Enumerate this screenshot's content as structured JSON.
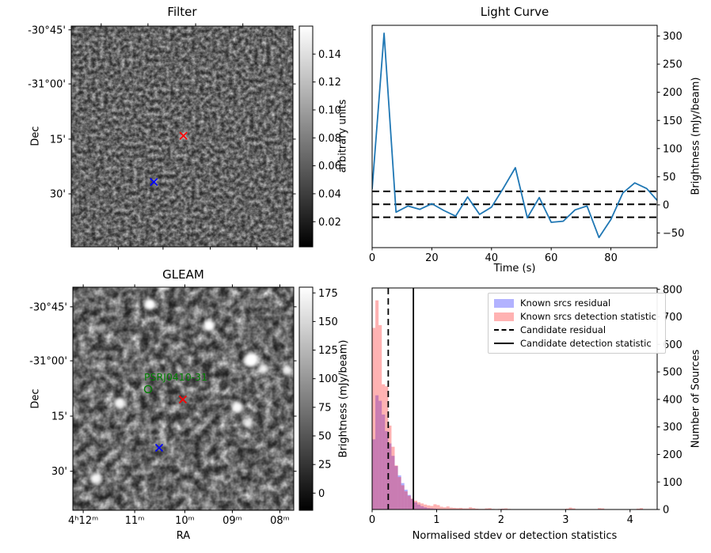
{
  "chart_data": [
    {
      "id": "filter_map",
      "type": "heatmap",
      "title": "Filter",
      "ylabel": "Dec",
      "colorbar": {
        "label": "arbitrary units",
        "vmin": 0.002,
        "vmax": 0.16,
        "ticks": [
          {
            "v": 0.02,
            "label": "0.02"
          },
          {
            "v": 0.04,
            "label": "0.04"
          },
          {
            "v": 0.06,
            "label": "0.06"
          },
          {
            "v": 0.08,
            "label": "0.08"
          },
          {
            "v": 0.1,
            "label": "0.10"
          },
          {
            "v": 0.12,
            "label": "0.12"
          },
          {
            "v": 0.14,
            "label": "0.14"
          }
        ]
      },
      "yticks": [
        {
          "label": "-30°45'",
          "f": 0.017
        },
        {
          "label": "-31°00'",
          "f": 0.262
        },
        {
          "label": "15'",
          "f": 0.512
        },
        {
          "label": "30'",
          "f": 0.76
        }
      ],
      "xticks_top": [
        {
          "f": 0.135
        },
        {
          "f": 0.346
        },
        {
          "f": 0.561
        },
        {
          "f": 0.774
        }
      ],
      "xticks_bottom": [
        {
          "f": 0.212
        },
        {
          "f": 0.414
        },
        {
          "f": 0.627
        },
        {
          "f": 0.837
        }
      ],
      "markers": [
        {
          "name": "red-x-marker",
          "color": "#ff0000",
          "fx": 0.506,
          "fy": 0.497
        },
        {
          "name": "blue-x-marker",
          "color": "#0000ff",
          "fx": 0.3725,
          "fy": 0.706
        }
      ]
    },
    {
      "id": "light_curve",
      "type": "line",
      "title": "Light Curve",
      "xlabel": "Time (s)",
      "ylabel": "Brightness (mJy/beam)",
      "line_color": "#1f77b4",
      "xlim": [
        0,
        95.5
      ],
      "ylim": [
        -76,
        319
      ],
      "xticks": [
        0,
        20,
        40,
        60,
        80
      ],
      "yticks": [
        -50,
        0,
        50,
        100,
        150,
        200,
        250,
        300
      ],
      "hlines": [
        24,
        1,
        -22
      ],
      "x": [
        0,
        4,
        8,
        12,
        16,
        20,
        24,
        28,
        32,
        36,
        40,
        44,
        48,
        52,
        56,
        60,
        64,
        68,
        72,
        76,
        80,
        84,
        88,
        92,
        96
      ],
      "y": [
        28,
        305,
        -13,
        -2,
        -8,
        2,
        -10,
        -20,
        14,
        -17,
        -4,
        30,
        66,
        -23,
        13,
        -31,
        -29,
        -9,
        -2,
        -58,
        -26,
        21,
        39,
        29,
        5
      ]
    },
    {
      "id": "gleam_map",
      "type": "heatmap",
      "title": "GLEAM",
      "xlabel": "RA",
      "ylabel": "Dec",
      "colorbar": {
        "label": "Brightness (mJy/beam)",
        "vmin": -15,
        "vmax": 180,
        "ticks": [
          {
            "v": 0,
            "label": "0"
          },
          {
            "v": 25,
            "label": "25"
          },
          {
            "v": 50,
            "label": "50"
          },
          {
            "v": 75,
            "label": "75"
          },
          {
            "v": 100,
            "label": "100"
          },
          {
            "v": 125,
            "label": "125"
          },
          {
            "v": 150,
            "label": "150"
          },
          {
            "v": 175,
            "label": "175"
          }
        ]
      },
      "yticks": [
        {
          "label": "-30°45'",
          "f": 0.088
        },
        {
          "label": "-31°00'",
          "f": 0.33
        },
        {
          "label": "15'",
          "f": 0.578
        },
        {
          "label": "30'",
          "f": 0.825
        }
      ],
      "xticks_bottom": [
        {
          "label": "4ʰ12ᵐ",
          "f": 0.047
        },
        {
          "label": "11ᵐ",
          "f": 0.28
        },
        {
          "label": "10ᵐ",
          "f": 0.507
        },
        {
          "label": "09ᵐ",
          "f": 0.722
        },
        {
          "label": "08ᵐ",
          "f": 0.937
        }
      ],
      "xticks_top": [
        {
          "f": 0.047
        },
        {
          "f": 0.28
        },
        {
          "f": 0.507
        },
        {
          "f": 0.722
        },
        {
          "f": 0.937
        }
      ],
      "annotation": {
        "text": "PSRJ0410-31",
        "color": "#008000",
        "fx": 0.3226,
        "fy": 0.4185,
        "circle_fx": 0.3405,
        "circle_fy": 0.4574
      },
      "markers": [
        {
          "name": "red-x-marker",
          "color": "#ff0000",
          "fx": 0.498,
          "fy": 0.5035
        },
        {
          "name": "blue-x-marker",
          "color": "#0000ff",
          "fx": 0.3907,
          "fy": 0.7199
        }
      ],
      "sources": [
        {
          "fx": 0.41,
          "fy": -0.01,
          "r": 7,
          "b": 0.95
        },
        {
          "fx": 0.349,
          "fy": 0.077,
          "r": 7,
          "b": 1.0
        },
        {
          "fx": 0.617,
          "fy": 0.172,
          "r": 7,
          "b": 1.0
        },
        {
          "fx": 0.128,
          "fy": 0.183,
          "r": 5,
          "b": 0.55
        },
        {
          "fx": 0.807,
          "fy": 0.326,
          "r": 9,
          "b": 1.0
        },
        {
          "fx": 0.862,
          "fy": 0.365,
          "r": 6,
          "b": 0.9
        },
        {
          "fx": 0.972,
          "fy": 0.373,
          "r": 6,
          "b": 0.85
        },
        {
          "fx": 0.212,
          "fy": 0.52,
          "r": 7,
          "b": 0.95
        },
        {
          "fx": 0.086,
          "fy": 0.49,
          "r": 4,
          "b": 0.5
        },
        {
          "fx": 0.745,
          "fy": 0.538,
          "r": 7,
          "b": 0.95
        },
        {
          "fx": 0.793,
          "fy": 0.61,
          "r": 6,
          "b": 0.9
        },
        {
          "fx": 0.104,
          "fy": 0.858,
          "r": 7,
          "b": 0.92
        },
        {
          "fx": 0.356,
          "fy": 0.627,
          "r": 4,
          "b": 0.55
        },
        {
          "fx": 0.607,
          "fy": 0.975,
          "r": 5,
          "b": 0.5
        },
        {
          "fx": 0.25,
          "fy": 0.26,
          "r": 4,
          "b": 0.4
        },
        {
          "fx": 0.93,
          "fy": 0.2,
          "r": 4,
          "b": 0.45
        },
        {
          "fx": 0.18,
          "fy": 0.75,
          "r": 4,
          "b": 0.4
        },
        {
          "fx": 0.5,
          "fy": 0.88,
          "r": 4,
          "b": 0.45
        }
      ]
    },
    {
      "id": "histogram",
      "type": "bar",
      "title": "",
      "xlabel": "Normalised stdev or detection statistics",
      "ylabel": "Number of Sources",
      "bin_start": 0,
      "bin_width": 0.05,
      "xlim": [
        0,
        4.42
      ],
      "ylim": [
        0,
        805
      ],
      "xticks": [
        0,
        1,
        2,
        3,
        4
      ],
      "yticks": [
        0,
        100,
        200,
        300,
        400,
        500,
        600,
        700,
        800
      ],
      "series": [
        {
          "name": "Known srcs residual",
          "color": "rgba(0,0,255,0.3)",
          "values": [
            255,
            415,
            395,
            345,
            285,
            240,
            195,
            158,
            124,
            96,
            72,
            53,
            38,
            26,
            18,
            12,
            8,
            5,
            4,
            3,
            2,
            0,
            0,
            0,
            0,
            0,
            0,
            0,
            0,
            0,
            0,
            0,
            0,
            0,
            0,
            0,
            0,
            0,
            0,
            0,
            2,
            0,
            0,
            0,
            0,
            0,
            0,
            0,
            0,
            0,
            0,
            0,
            0,
            0,
            0,
            0,
            0,
            0,
            0,
            0,
            0,
            0,
            0,
            0,
            0,
            0,
            0,
            0,
            0,
            0,
            0,
            0,
            0,
            0,
            0,
            0,
            0,
            0,
            0,
            0,
            0,
            0,
            0,
            0,
            0
          ]
        },
        {
          "name": "Known srcs detection statistic",
          "color": "rgba(255,0,0,0.3)",
          "values": [
            660,
            760,
            670,
            455,
            448,
            305,
            228,
            160,
            118,
            88,
            66,
            50,
            40,
            32,
            26,
            22,
            18,
            15,
            13,
            19,
            16,
            10,
            8,
            11,
            7,
            6,
            5,
            6,
            4,
            4,
            8,
            5,
            3,
            2,
            2,
            4,
            5,
            2,
            0,
            2,
            3,
            4,
            2,
            0,
            0,
            0,
            0,
            0,
            0,
            0,
            0,
            0,
            0,
            0,
            0,
            0,
            0,
            0,
            0,
            0,
            3,
            7,
            4,
            0,
            0,
            0,
            0,
            0,
            0,
            0,
            5,
            4,
            0,
            0,
            0,
            0,
            0,
            0,
            0,
            0,
            0,
            0,
            3,
            5,
            0
          ]
        }
      ],
      "vlines": [
        {
          "name": "candidate-residual-line",
          "x": 0.25,
          "style": "dashed"
        },
        {
          "name": "candidate-detection-line",
          "x": 0.64,
          "style": "solid"
        }
      ],
      "legend": [
        {
          "label": "Known srcs residual"
        },
        {
          "label": "Known srcs detection statistic"
        },
        {
          "label": "Candidate residual"
        },
        {
          "label": "Candidate detection statistic"
        }
      ]
    }
  ]
}
